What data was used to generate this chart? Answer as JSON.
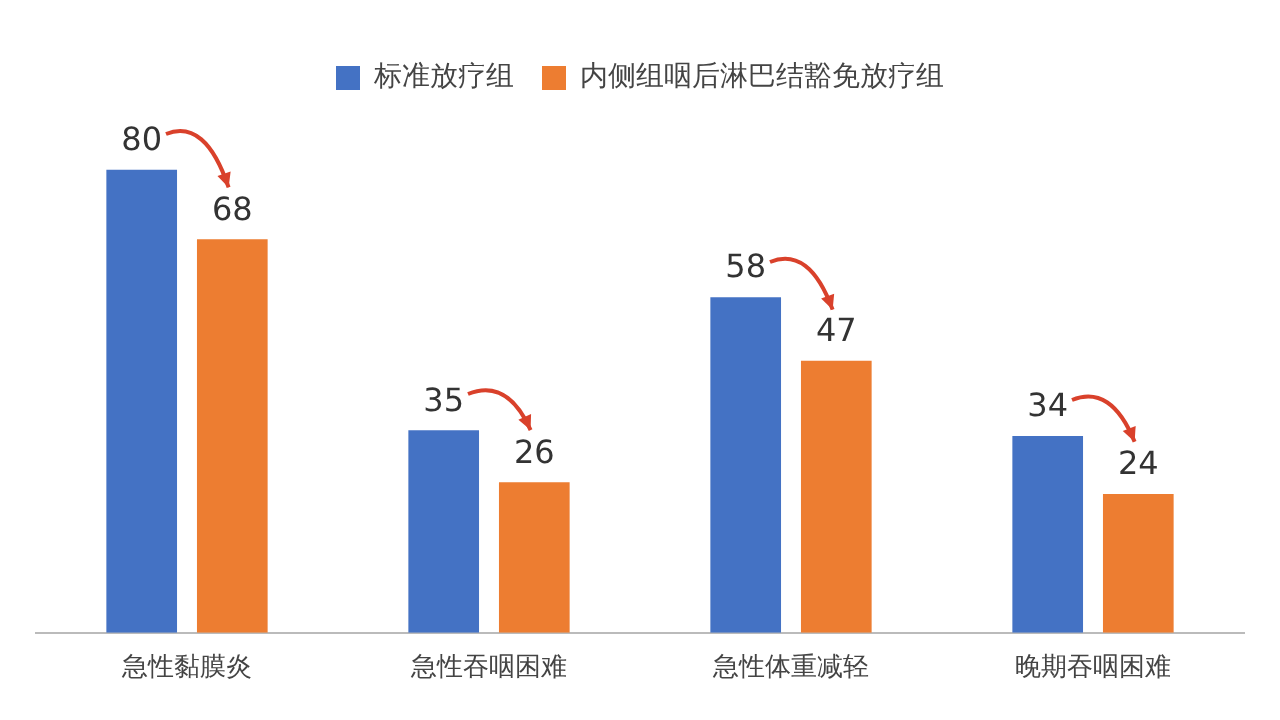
{
  "chart_data": {
    "type": "bar",
    "categories": [
      "急性黏膜炎",
      "急性吞咽困难",
      "急性体重减轻",
      "晚期吞咽困难"
    ],
    "series": [
      {
        "name": "标准放疗组",
        "color": "#4472c4",
        "values": [
          80,
          35,
          58,
          34
        ]
      },
      {
        "name": "内侧组咽后淋巴结豁免放疗组",
        "color": "#ed7d31",
        "values": [
          68,
          26,
          47,
          24
        ]
      }
    ],
    "data_labels": true,
    "legend": "top",
    "grid": false
  }
}
